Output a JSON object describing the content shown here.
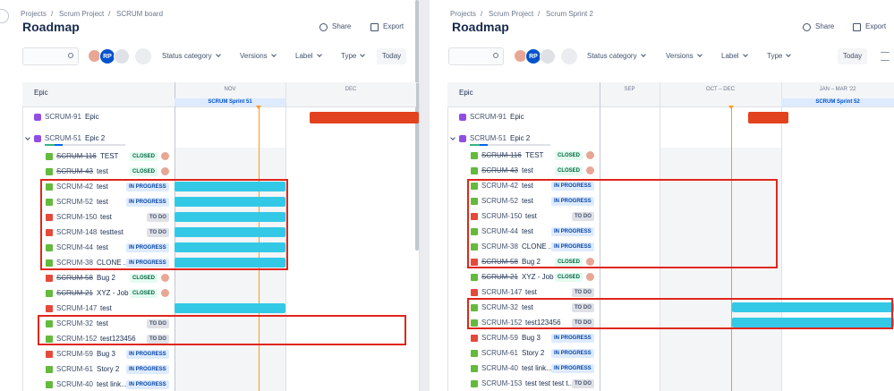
{
  "breadcrumb_separator": "/",
  "panels": [
    {
      "breadcrumbs": [
        "Projects",
        "Scrum Project",
        "SCRUM board"
      ],
      "title": "Roadmap",
      "actions": [
        "Share",
        "Export"
      ],
      "avatar_initials": "RP",
      "filters": [
        "Status category",
        "Versions",
        "Label",
        "Type"
      ],
      "today": "Today",
      "column_header": "Epic",
      "months": [
        "NOV",
        "DEC"
      ],
      "sprint": "SCRUM Sprint 51",
      "epics": [
        {
          "key": "SCRUM-91",
          "summary": "Epic"
        },
        {
          "key": "SCRUM-51",
          "summary": "Epic 2"
        }
      ],
      "rows": [
        {
          "key": "SCRUM-116",
          "summary": "TEST",
          "status": "CLOSED",
          "icon_color": "#63ba3c"
        },
        {
          "key": "SCRUM-43",
          "summary": "test",
          "status": "CLOSED",
          "icon_color": "#63ba3c"
        },
        {
          "key": "SCRUM-42",
          "summary": "test",
          "status": "IN PROGRESS",
          "icon_color": "#63ba3c"
        },
        {
          "key": "SCRUM-52",
          "summary": "test",
          "status": "IN PROGRESS",
          "icon_color": "#63ba3c"
        },
        {
          "key": "SCRUM-150",
          "summary": "test",
          "status": "TO DO",
          "icon_color": "#e5493a"
        },
        {
          "key": "SCRUM-148",
          "summary": "testtest",
          "status": "TO DO",
          "icon_color": "#e5493a"
        },
        {
          "key": "SCRUM-44",
          "summary": "test",
          "status": "IN PROGRESS",
          "icon_color": "#63ba3c"
        },
        {
          "key": "SCRUM-38",
          "summary": "CLONE ...",
          "status": "IN PROGRESS",
          "icon_color": "#63ba3c"
        },
        {
          "key": "SCRUM-58",
          "summary": "Bug 2",
          "status": "CLOSED",
          "icon_color": "#e5493a"
        },
        {
          "key": "SCRUM-21",
          "summary": "XYZ - Job 1",
          "status": "CLOSED",
          "icon_color": "#63ba3c"
        },
        {
          "key": "SCRUM-147",
          "summary": "test",
          "icon_color": "#e5493a"
        },
        {
          "key": "SCRUM-32",
          "summary": "test",
          "status": "TO DO",
          "icon_color": "#63ba3c"
        },
        {
          "key": "SCRUM-152",
          "summary": "test123456",
          "status": "TO DO",
          "icon_color": "#63ba3c"
        },
        {
          "key": "SCRUM-59",
          "summary": "Bug 3",
          "status": "IN PROGRESS",
          "icon_color": "#e5493a"
        },
        {
          "key": "SCRUM-61",
          "summary": "Story 2",
          "status": "IN PROGRESS",
          "icon_color": "#63ba3c"
        },
        {
          "key": "SCRUM-40",
          "summary": "test link...",
          "status": "IN PROGRESS",
          "icon_color": "#63ba3c"
        }
      ]
    },
    {
      "breadcrumbs": [
        "Projects",
        "Scrum Project",
        "Scrum Sprint 2"
      ],
      "title": "Roadmap",
      "actions": [
        "Share",
        "Export"
      ],
      "avatar_initials": "RP",
      "filters": [
        "Status category",
        "Versions",
        "Label",
        "Type"
      ],
      "today": "Today",
      "column_header": "Epic",
      "months": [
        "SEP",
        "OCT – DEC",
        "JAN – MAR '22"
      ],
      "sprint": "SCRUM Sprint 52",
      "epics": [
        {
          "key": "SCRUM-91",
          "summary": "Epic"
        },
        {
          "key": "SCRUM-51",
          "summary": "Epic 2"
        }
      ],
      "rows": [
        {
          "key": "SCRUM-116",
          "summary": "TEST",
          "status": "CLOSED",
          "icon_color": "#63ba3c"
        },
        {
          "key": "SCRUM-43",
          "summary": "test",
          "status": "CLOSED",
          "icon_color": "#63ba3c"
        },
        {
          "key": "SCRUM-42",
          "summary": "test",
          "status": "IN PROGRESS",
          "icon_color": "#63ba3c"
        },
        {
          "key": "SCRUM-52",
          "summary": "test",
          "status": "IN PROGRESS",
          "icon_color": "#63ba3c"
        },
        {
          "key": "SCRUM-150",
          "summary": "test",
          "status": "TO DO",
          "icon_color": "#e5493a"
        },
        {
          "key": "SCRUM-44",
          "summary": "test",
          "status": "IN PROGRESS",
          "icon_color": "#63ba3c"
        },
        {
          "key": "SCRUM-38",
          "summary": "CLONE ...",
          "status": "IN PROGRESS",
          "icon_color": "#63ba3c"
        },
        {
          "key": "SCRUM-58",
          "summary": "Bug 2",
          "status": "CLOSED",
          "icon_color": "#e5493a"
        },
        {
          "key": "SCRUM-21",
          "summary": "XYZ - Job 1",
          "status": "CLOSED",
          "icon_color": "#63ba3c"
        },
        {
          "key": "SCRUM-147",
          "summary": "test",
          "status": "TO DO",
          "icon_color": "#e5493a"
        },
        {
          "key": "SCRUM-32",
          "summary": "test",
          "status": "TO DO",
          "icon_color": "#63ba3c"
        },
        {
          "key": "SCRUM-152",
          "summary": "test123456",
          "status": "TO DO",
          "icon_color": "#63ba3c"
        },
        {
          "key": "SCRUM-59",
          "summary": "Bug 3",
          "status": "IN PROGRESS",
          "icon_color": "#e5493a"
        },
        {
          "key": "SCRUM-61",
          "summary": "Story 2",
          "status": "IN PROGRESS",
          "icon_color": "#63ba3c"
        },
        {
          "key": "SCRUM-40",
          "summary": "test link...",
          "status": "IN PROGRESS",
          "icon_color": "#63ba3c"
        },
        {
          "key": "SCRUM-153",
          "summary": "test test test t...",
          "status": "TO DO",
          "icon_color": "#63ba3c"
        }
      ]
    }
  ]
}
